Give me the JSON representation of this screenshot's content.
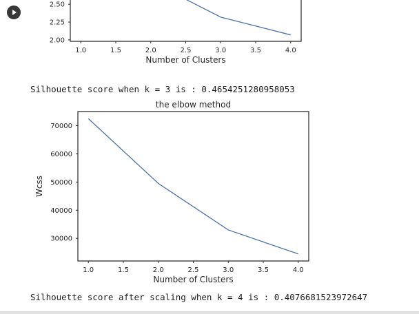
{
  "cell": {
    "run_icon": "play-icon",
    "outputs": [
      "Silhouette score when k = 3 is : 0.4654251280958053",
      "Silhouette score after scaling when k = 4 is : 0.4076681523972647"
    ]
  },
  "chart_data": [
    {
      "type": "line",
      "title": "",
      "xlabel": "Number of Clusters",
      "ylabel": "",
      "x_ticks": [
        "1.0",
        "1.5",
        "2.0",
        "2.5",
        "3.0",
        "3.5",
        "4.0"
      ],
      "y_ticks": [
        "2.00",
        "2.25",
        "2.50"
      ],
      "xlim": [
        0.85,
        4.15
      ],
      "ylim": [
        1.98,
        2.56
      ],
      "grid": false,
      "series": [
        {
          "x": [
            2.5,
            3,
            4
          ],
          "y": [
            2.57,
            2.32,
            2.07
          ],
          "color": "#4c72b0"
        }
      ]
    },
    {
      "type": "line",
      "title": "the elbow method",
      "xlabel": "Number of Clusters",
      "ylabel": "Wcss",
      "x_ticks": [
        "1.0",
        "1.5",
        "2.0",
        "2.5",
        "3.0",
        "3.5",
        "4.0"
      ],
      "y_ticks": [
        "30000",
        "40000",
        "50000",
        "60000",
        "70000"
      ],
      "xlim": [
        0.85,
        4.15
      ],
      "ylim": [
        22000,
        75000
      ],
      "grid": false,
      "series": [
        {
          "x": [
            1,
            2,
            3,
            4
          ],
          "y": [
            72500,
            49500,
            33000,
            24500
          ],
          "color": "#4c72b0"
        }
      ]
    }
  ]
}
